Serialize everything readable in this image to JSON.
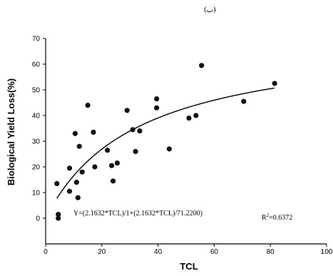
{
  "page": {
    "corner_mark": "(ب)"
  },
  "chart_data": {
    "type": "scatter",
    "xlabel": "TCL",
    "ylabel": "Biological Yield Loss(%)",
    "xlim": [
      0,
      100
    ],
    "ylim": [
      -10,
      70
    ],
    "x_ticks": [
      0,
      20,
      40,
      60,
      80,
      100
    ],
    "x_tick_labels": [
      "0",
      "20",
      "40",
      "60",
      "80",
      "100"
    ],
    "y_ticks": [
      0,
      10,
      20,
      30,
      40,
      50,
      60,
      70
    ],
    "y_tick_labels": [
      "0",
      "10",
      "20",
      "30",
      "40",
      "50",
      "60",
      "70"
    ],
    "grid": false,
    "points": [
      {
        "x": 4,
        "y": 13.5
      },
      {
        "x": 4.5,
        "y": 1.5
      },
      {
        "x": 4.5,
        "y": 0
      },
      {
        "x": 8.5,
        "y": 19.5
      },
      {
        "x": 8.5,
        "y": 10.5
      },
      {
        "x": 10.5,
        "y": 33
      },
      {
        "x": 11,
        "y": 14
      },
      {
        "x": 11.5,
        "y": 8
      },
      {
        "x": 12,
        "y": 28
      },
      {
        "x": 13,
        "y": 18
      },
      {
        "x": 15,
        "y": 44
      },
      {
        "x": 17,
        "y": 33.5
      },
      {
        "x": 17.5,
        "y": 20
      },
      {
        "x": 22,
        "y": 26.5
      },
      {
        "x": 23.5,
        "y": 20.5
      },
      {
        "x": 24,
        "y": 14.5
      },
      {
        "x": 25.5,
        "y": 21.5
      },
      {
        "x": 29,
        "y": 42
      },
      {
        "x": 31,
        "y": 34.5
      },
      {
        "x": 32,
        "y": 26
      },
      {
        "x": 33.5,
        "y": 34
      },
      {
        "x": 39.5,
        "y": 46.5
      },
      {
        "x": 39.5,
        "y": 43
      },
      {
        "x": 44,
        "y": 27
      },
      {
        "x": 51,
        "y": 39
      },
      {
        "x": 53.5,
        "y": 40
      },
      {
        "x": 55.5,
        "y": 59.5
      },
      {
        "x": 70.5,
        "y": 45.5
      },
      {
        "x": 81.5,
        "y": 52.5
      }
    ],
    "fit": {
      "equation_label": "Y=(2.1632*TCL)/1+(2.1632*TCL)/71.2200)",
      "r2_prefix": "R",
      "r2_sup": "2",
      "r2_value": "=0.6372",
      "a": 2.1632,
      "b": 71.22,
      "x_range": [
        4,
        81.5
      ]
    }
  }
}
